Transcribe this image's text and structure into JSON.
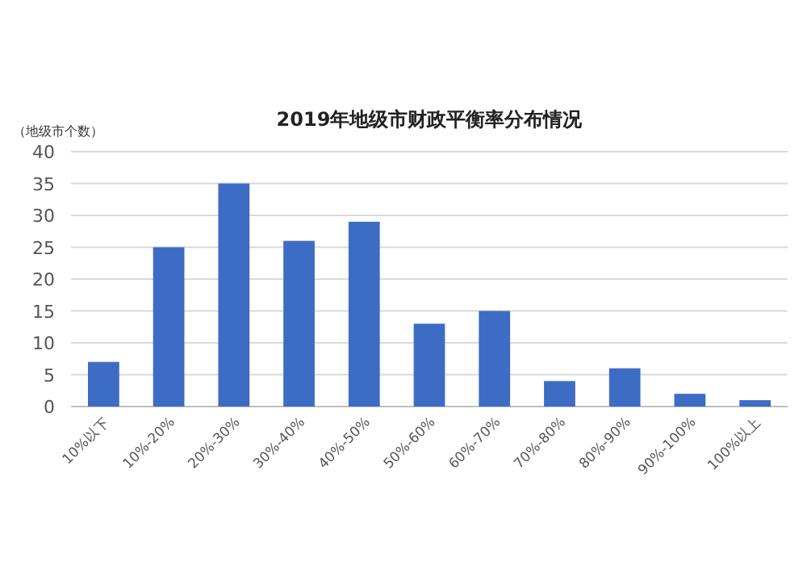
{
  "chart_data": {
    "type": "bar",
    "title": "2019年地级市财政平衡率分布情况",
    "ylabel": "（地级市个数）",
    "categories": [
      "10%以下",
      "10%-20%",
      "20%-30%",
      "30%-40%",
      "40%-50%",
      "50%-60%",
      "60%-70%",
      "70%-80%",
      "80%-90%",
      "90%-100%",
      "100%以上"
    ],
    "values": [
      7,
      25,
      35,
      26,
      29,
      13,
      15,
      4,
      6,
      2,
      1
    ],
    "color": "#3d6cc4",
    "ylim": [
      0,
      40
    ],
    "yticks": [
      0,
      5,
      10,
      15,
      20,
      25,
      30,
      35,
      40
    ],
    "grid": "y"
  }
}
